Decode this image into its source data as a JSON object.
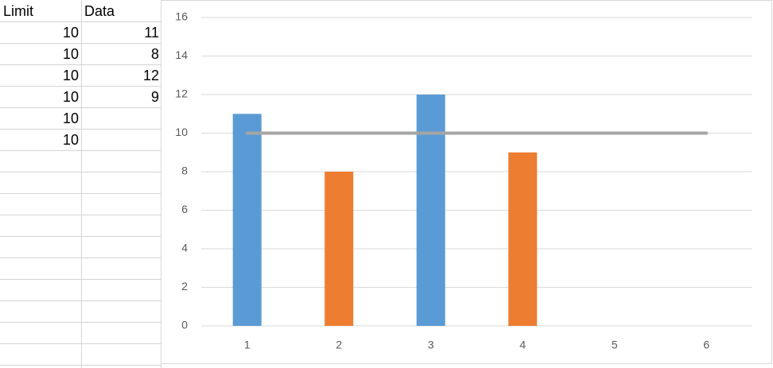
{
  "table": {
    "header": [
      "Limit",
      "Data"
    ],
    "rows": [
      [
        10,
        11
      ],
      [
        10,
        8
      ],
      [
        10,
        12
      ],
      [
        10,
        9
      ],
      [
        10,
        null
      ],
      [
        10,
        null
      ]
    ]
  },
  "chart_data": {
    "type": "bar",
    "categories": [
      1,
      2,
      3,
      4,
      5,
      6
    ],
    "series": [
      {
        "type": "bar",
        "colors": [
          "#5b9bd5",
          "#ed7d31",
          "#5b9bd5",
          "#ed7d31",
          "#5b9bd5",
          "#ed7d31"
        ],
        "values": [
          11,
          8,
          12,
          9,
          null,
          null
        ]
      },
      {
        "type": "line",
        "color": "#a5a5a5",
        "values": [
          10,
          10,
          10,
          10,
          10,
          10
        ]
      }
    ],
    "ylim": [
      0,
      16
    ],
    "yticks": [
      0,
      2,
      4,
      6,
      8,
      10,
      12,
      14,
      16
    ],
    "grid": true
  }
}
